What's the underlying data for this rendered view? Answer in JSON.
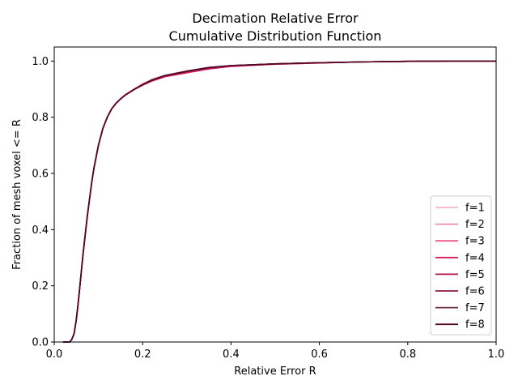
{
  "chart_data": {
    "type": "line",
    "title_line1": "Decimation Relative Error",
    "title_line2": "Cumulative Distribution Function",
    "xlabel": "Relative Error R",
    "ylabel": "Fraction of mesh voxel <= R",
    "xlim": [
      0.0,
      1.0
    ],
    "ylim": [
      0.0,
      1.05
    ],
    "xticks": [
      0.0,
      0.2,
      0.4,
      0.6,
      0.8,
      1.0
    ],
    "xtick_labels": [
      "0.0",
      "0.2",
      "0.4",
      "0.6",
      "0.8",
      "1.0"
    ],
    "yticks": [
      0.0,
      0.2,
      0.4,
      0.6,
      0.8,
      1.0
    ],
    "ytick_labels": [
      "0.0",
      "0.2",
      "0.4",
      "0.6",
      "0.8",
      "1.0"
    ],
    "grid": false,
    "legend_position": "lower-right",
    "x": [
      0.02,
      0.035,
      0.04,
      0.045,
      0.05,
      0.055,
      0.06,
      0.065,
      0.07,
      0.075,
      0.08,
      0.085,
      0.09,
      0.1,
      0.11,
      0.12,
      0.13,
      0.14,
      0.15,
      0.16,
      0.18,
      0.2,
      0.22,
      0.25,
      0.3,
      0.35,
      0.4,
      0.5,
      0.6,
      0.7,
      0.8,
      0.9,
      1.0
    ],
    "series": [
      {
        "name": "f=1",
        "color": "#f4b4c8",
        "values": [
          0.0,
          0.0,
          0.01,
          0.03,
          0.08,
          0.15,
          0.23,
          0.31,
          0.38,
          0.45,
          0.51,
          0.57,
          0.62,
          0.7,
          0.76,
          0.8,
          0.83,
          0.85,
          0.865,
          0.88,
          0.9,
          0.92,
          0.935,
          0.95,
          0.965,
          0.978,
          0.984,
          0.99,
          0.994,
          0.997,
          0.999,
          1.0,
          1.0
        ]
      },
      {
        "name": "f=2",
        "color": "#ef8eac",
        "values": [
          0.0,
          0.0,
          0.01,
          0.03,
          0.08,
          0.15,
          0.23,
          0.31,
          0.38,
          0.45,
          0.51,
          0.57,
          0.62,
          0.7,
          0.76,
          0.8,
          0.83,
          0.85,
          0.865,
          0.88,
          0.9,
          0.918,
          0.932,
          0.948,
          0.963,
          0.976,
          0.983,
          0.99,
          0.994,
          0.997,
          0.999,
          1.0,
          1.0
        ]
      },
      {
        "name": "f=3",
        "color": "#ea5a8a",
        "values": [
          0.0,
          0.0,
          0.01,
          0.03,
          0.08,
          0.15,
          0.23,
          0.31,
          0.38,
          0.45,
          0.51,
          0.57,
          0.62,
          0.7,
          0.76,
          0.8,
          0.83,
          0.85,
          0.865,
          0.878,
          0.898,
          0.915,
          0.93,
          0.945,
          0.96,
          0.974,
          0.982,
          0.989,
          0.993,
          0.997,
          0.999,
          1.0,
          1.0
        ]
      },
      {
        "name": "f=4",
        "color": "#d81b60",
        "values": [
          0.0,
          0.0,
          0.01,
          0.03,
          0.08,
          0.15,
          0.23,
          0.31,
          0.38,
          0.45,
          0.51,
          0.57,
          0.62,
          0.7,
          0.76,
          0.8,
          0.83,
          0.85,
          0.865,
          0.878,
          0.898,
          0.914,
          0.928,
          0.944,
          0.958,
          0.972,
          0.981,
          0.989,
          0.993,
          0.997,
          0.999,
          1.0,
          1.0
        ]
      },
      {
        "name": "f=5",
        "color": "#b0124c",
        "values": [
          0.0,
          0.0,
          0.01,
          0.03,
          0.08,
          0.15,
          0.23,
          0.31,
          0.38,
          0.45,
          0.51,
          0.57,
          0.62,
          0.7,
          0.76,
          0.8,
          0.83,
          0.85,
          0.865,
          0.878,
          0.898,
          0.915,
          0.93,
          0.946,
          0.962,
          0.975,
          0.983,
          0.99,
          0.994,
          0.997,
          0.999,
          1.0,
          1.0
        ]
      },
      {
        "name": "f=6",
        "color": "#8b1a42",
        "values": [
          0.0,
          0.0,
          0.01,
          0.03,
          0.08,
          0.15,
          0.23,
          0.31,
          0.38,
          0.45,
          0.51,
          0.57,
          0.62,
          0.7,
          0.76,
          0.8,
          0.83,
          0.85,
          0.865,
          0.878,
          0.898,
          0.916,
          0.931,
          0.947,
          0.963,
          0.976,
          0.983,
          0.99,
          0.994,
          0.997,
          0.999,
          1.0,
          1.0
        ]
      },
      {
        "name": "f=7",
        "color": "#6e2a45",
        "values": [
          0.0,
          0.0,
          0.01,
          0.03,
          0.08,
          0.15,
          0.23,
          0.31,
          0.38,
          0.45,
          0.51,
          0.57,
          0.62,
          0.7,
          0.76,
          0.8,
          0.83,
          0.85,
          0.865,
          0.878,
          0.898,
          0.916,
          0.932,
          0.948,
          0.964,
          0.977,
          0.984,
          0.99,
          0.994,
          0.997,
          0.999,
          1.0,
          1.0
        ]
      },
      {
        "name": "f=8",
        "color": "#520627",
        "values": [
          0.0,
          0.0,
          0.01,
          0.03,
          0.08,
          0.15,
          0.23,
          0.31,
          0.38,
          0.45,
          0.51,
          0.57,
          0.62,
          0.7,
          0.76,
          0.8,
          0.83,
          0.85,
          0.865,
          0.878,
          0.898,
          0.916,
          0.932,
          0.948,
          0.964,
          0.977,
          0.984,
          0.99,
          0.994,
          0.997,
          0.999,
          1.0,
          1.0
        ]
      }
    ]
  }
}
